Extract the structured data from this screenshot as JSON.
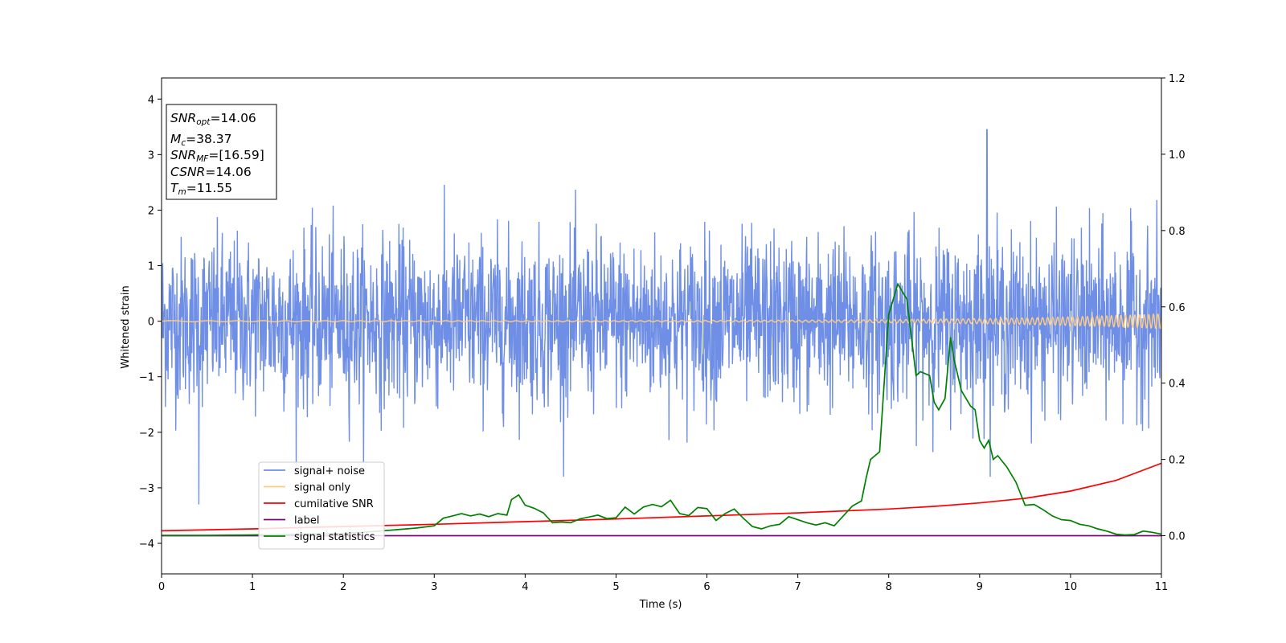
{
  "chart_data": {
    "type": "line",
    "xlabel": "Time (s)",
    "ylabel": "Whitened strain",
    "xlim": [
      0,
      11
    ],
    "ylim_left": [
      -4.55,
      4.38
    ],
    "ylim_right": [
      -0.1,
      1.2
    ],
    "x_ticks": [
      0,
      1,
      2,
      3,
      4,
      5,
      6,
      7,
      8,
      9,
      10,
      11
    ],
    "y_ticks_left": [
      -4,
      -3,
      -2,
      -1,
      0,
      1,
      2,
      3,
      4
    ],
    "y_ticks_right": [
      0.0,
      0.2,
      0.4,
      0.6,
      0.8,
      1.0,
      1.2
    ],
    "grid": false,
    "legend_position": "lower-left",
    "info_box": {
      "snr_opt_label": "SNR",
      "snr_opt_sub": "opt",
      "snr_opt_value": "=14.06",
      "mc_label": "M",
      "mc_sub": "c",
      "mc_value": "=38.37",
      "snr_mf_label": "SNR",
      "snr_mf_sub": "MF",
      "snr_mf_value": "=[16.59]",
      "csnr_label": "CSNR",
      "csnr_value": "=14.06",
      "tm_label": "T",
      "tm_sub": "m",
      "tm_value": "=11.55"
    },
    "series": [
      {
        "name": "signal+ noise",
        "color": "#6f8fe6",
        "axis": "left",
        "kind": "noise",
        "sigma": 0.75,
        "envelope_y": [
          -1.55,
          1.6
        ],
        "peak_y": 3.45,
        "peak_x": 9.08,
        "min_y": -3.3,
        "min_x": 0.41
      },
      {
        "name": "signal only",
        "color": "#ffcc80",
        "axis": "left",
        "kind": "chirp",
        "start_freq_hz": 2,
        "end_freq_hz": 20,
        "end_amplitude": 0.12
      },
      {
        "name": "cumilative SNR",
        "color": "#ff0000",
        "axis": "right",
        "x": [
          0,
          1,
          2,
          3,
          4,
          5,
          6,
          7,
          8,
          8.5,
          9,
          9.5,
          10,
          10.5,
          11
        ],
        "y": [
          0.013,
          0.018,
          0.024,
          0.03,
          0.037,
          0.044,
          0.052,
          0.06,
          0.07,
          0.077,
          0.086,
          0.098,
          0.117,
          0.145,
          0.19
        ]
      },
      {
        "name": "label",
        "color": "#800080",
        "axis": "right",
        "x": [
          0,
          11
        ],
        "y": [
          0.0,
          0.0
        ]
      },
      {
        "name": "signal statistics",
        "color": "#008000",
        "axis": "right",
        "x": [
          0,
          0.5,
          1,
          1.5,
          2,
          2.4,
          2.6,
          2.8,
          3.0,
          3.1,
          3.2,
          3.3,
          3.4,
          3.5,
          3.6,
          3.7,
          3.8,
          3.85,
          3.93,
          4.0,
          4.1,
          4.2,
          4.3,
          4.4,
          4.5,
          4.6,
          4.7,
          4.8,
          4.9,
          5.0,
          5.1,
          5.2,
          5.3,
          5.4,
          5.5,
          5.6,
          5.7,
          5.8,
          5.9,
          6.0,
          6.1,
          6.2,
          6.3,
          6.4,
          6.5,
          6.6,
          6.7,
          6.8,
          6.9,
          7.0,
          7.1,
          7.2,
          7.3,
          7.4,
          7.5,
          7.6,
          7.7,
          7.75,
          7.8,
          7.9,
          8.0,
          8.05,
          8.1,
          8.15,
          8.2,
          8.3,
          8.35,
          8.45,
          8.5,
          8.55,
          8.62,
          8.68,
          8.72,
          8.8,
          8.9,
          8.95,
          9.0,
          9.05,
          9.1,
          9.15,
          9.2,
          9.3,
          9.4,
          9.5,
          9.6,
          9.7,
          9.8,
          9.9,
          10.0,
          10.1,
          10.2,
          10.3,
          10.4,
          10.5,
          10.6,
          10.7,
          10.8,
          10.9,
          11.0
        ],
        "y": [
          0.001,
          0.001,
          0.002,
          0.004,
          0.006,
          0.012,
          0.016,
          0.02,
          0.026,
          0.046,
          0.052,
          0.058,
          0.052,
          0.057,
          0.05,
          0.058,
          0.054,
          0.095,
          0.107,
          0.08,
          0.072,
          0.06,
          0.034,
          0.036,
          0.034,
          0.044,
          0.049,
          0.054,
          0.045,
          0.047,
          0.075,
          0.057,
          0.075,
          0.082,
          0.076,
          0.093,
          0.058,
          0.053,
          0.074,
          0.071,
          0.04,
          0.058,
          0.07,
          0.046,
          0.024,
          0.018,
          0.026,
          0.03,
          0.05,
          0.042,
          0.034,
          0.028,
          0.034,
          0.026,
          0.052,
          0.078,
          0.091,
          0.15,
          0.2,
          0.22,
          0.58,
          0.62,
          0.66,
          0.64,
          0.62,
          0.42,
          0.43,
          0.42,
          0.35,
          0.33,
          0.36,
          0.52,
          0.46,
          0.38,
          0.34,
          0.33,
          0.25,
          0.23,
          0.25,
          0.2,
          0.21,
          0.18,
          0.14,
          0.08,
          0.082,
          0.068,
          0.052,
          0.042,
          0.04,
          0.03,
          0.026,
          0.018,
          0.012,
          0.004,
          0.002,
          0.003,
          0.012,
          0.009,
          0.004
        ]
      }
    ]
  }
}
